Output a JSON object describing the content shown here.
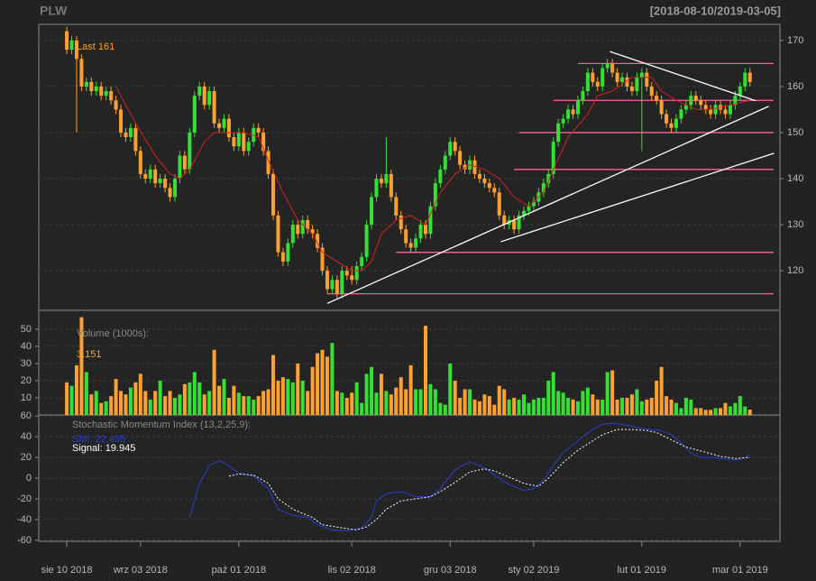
{
  "chart_data": [
    {
      "type": "candlestick",
      "title": "PLW",
      "subtitle": "[2018-08-10/2019-03-05]",
      "annotation": "Last 161",
      "up_color": "#34e034",
      "down_color": "#ffa030",
      "annotation_color": "#ffa030",
      "open": [
        172,
        168,
        170,
        166,
        160,
        161,
        159,
        160,
        158,
        159,
        157,
        155,
        150,
        149,
        151,
        146,
        141,
        140,
        142,
        139,
        140,
        138,
        136,
        140,
        145,
        142,
        150,
        158,
        160,
        156,
        159,
        152,
        151,
        153,
        149,
        147,
        150,
        146,
        148,
        151,
        150,
        146,
        141,
        132,
        124,
        122,
        126,
        130,
        128,
        131,
        129,
        128,
        125,
        120,
        116,
        118,
        115,
        120,
        119,
        118,
        121,
        123,
        130,
        136,
        140,
        139,
        141,
        136,
        132,
        129,
        126,
        125,
        127,
        130,
        128,
        134,
        139,
        142,
        145,
        148,
        146,
        143,
        142,
        144,
        141,
        140,
        139,
        138,
        137,
        132,
        130,
        131,
        129,
        132,
        133,
        134,
        135,
        137,
        139,
        141,
        148,
        152,
        153,
        155,
        154,
        157,
        159,
        163,
        161,
        160,
        164,
        165,
        163,
        161,
        162,
        160,
        159,
        162,
        163,
        160,
        158,
        157,
        154,
        152,
        151,
        153,
        155,
        156,
        158,
        157,
        156,
        155,
        154,
        156,
        155,
        154,
        156,
        158,
        160,
        163
      ],
      "high": [
        173,
        171,
        171,
        167,
        162,
        162,
        161,
        161,
        160,
        160,
        158,
        156,
        151,
        152,
        152,
        147,
        142,
        143,
        143,
        141,
        141,
        139,
        141,
        146,
        146,
        151,
        159,
        161,
        161,
        160,
        160,
        153,
        154,
        154,
        150,
        151,
        151,
        149,
        152,
        152,
        151,
        147,
        142,
        133,
        125,
        127,
        131,
        131,
        132,
        132,
        130,
        129,
        126,
        121,
        119,
        119,
        121,
        121,
        121,
        122,
        124,
        131,
        137,
        141,
        141,
        149,
        142,
        137,
        133,
        130,
        127,
        128,
        131,
        131,
        135,
        140,
        143,
        146,
        149,
        149,
        147,
        144,
        145,
        145,
        142,
        141,
        140,
        139,
        138,
        133,
        132,
        132,
        133,
        134,
        135,
        136,
        138,
        140,
        142,
        149,
        153,
        154,
        156,
        156,
        158,
        160,
        164,
        164,
        162,
        165,
        166,
        166,
        164,
        163,
        163,
        161,
        163,
        164,
        164,
        161,
        159,
        158,
        155,
        153,
        154,
        156,
        157,
        159,
        159,
        158,
        157,
        156,
        157,
        157,
        156,
        157,
        159,
        161,
        164,
        164
      ],
      "low": [
        167,
        167,
        150,
        159,
        159,
        158,
        158,
        157,
        157,
        156,
        154,
        149,
        148,
        148,
        145,
        140,
        139,
        139,
        138,
        138,
        137,
        135,
        135,
        139,
        141,
        141,
        149,
        157,
        155,
        155,
        151,
        150,
        150,
        148,
        146,
        146,
        145,
        145,
        147,
        149,
        145,
        140,
        131,
        123,
        121,
        121,
        125,
        127,
        127,
        128,
        127,
        124,
        119,
        115,
        115,
        114,
        114,
        118,
        117,
        117,
        120,
        122,
        129,
        135,
        138,
        138,
        135,
        131,
        128,
        125,
        124,
        124,
        126,
        127,
        127,
        133,
        138,
        141,
        144,
        145,
        142,
        141,
        141,
        140,
        139,
        138,
        137,
        136,
        131,
        129,
        129,
        128,
        128,
        131,
        132,
        133,
        134,
        136,
        138,
        140,
        147,
        151,
        152,
        153,
        153,
        156,
        158,
        160,
        159,
        159,
        163,
        162,
        160,
        160,
        159,
        158,
        158,
        146,
        159,
        157,
        156,
        153,
        151,
        150,
        150,
        152,
        154,
        155,
        156,
        155,
        154,
        153,
        153,
        154,
        153,
        153,
        155,
        157,
        159,
        160
      ],
      "close": [
        168,
        170,
        166,
        160,
        161,
        159,
        160,
        158,
        159,
        157,
        155,
        150,
        149,
        151,
        146,
        141,
        140,
        142,
        139,
        140,
        138,
        136,
        140,
        145,
        142,
        150,
        158,
        160,
        156,
        159,
        152,
        151,
        153,
        149,
        147,
        150,
        146,
        148,
        151,
        150,
        146,
        141,
        132,
        124,
        122,
        126,
        130,
        128,
        131,
        129,
        128,
        125,
        120,
        116,
        118,
        115,
        120,
        119,
        118,
        121,
        123,
        130,
        136,
        140,
        139,
        141,
        136,
        132,
        129,
        126,
        125,
        127,
        130,
        128,
        134,
        139,
        142,
        145,
        148,
        146,
        143,
        142,
        144,
        141,
        140,
        139,
        138,
        137,
        132,
        130,
        131,
        129,
        132,
        133,
        134,
        135,
        137,
        139,
        141,
        148,
        152,
        153,
        155,
        154,
        157,
        159,
        163,
        161,
        160,
        164,
        165,
        163,
        161,
        162,
        160,
        159,
        162,
        163,
        160,
        158,
        157,
        154,
        152,
        151,
        153,
        155,
        156,
        158,
        157,
        156,
        155,
        154,
        156,
        155,
        154,
        156,
        158,
        160,
        163,
        161
      ],
      "ma": {
        "color": "#d42020",
        "x": [
          10,
          14,
          18,
          21,
          23,
          25,
          28,
          30,
          33,
          36,
          39,
          41,
          44,
          47,
          50,
          52,
          55,
          58,
          60,
          62,
          64,
          67,
          70,
          73,
          76,
          79,
          82,
          85,
          88,
          91,
          94,
          97,
          99,
          102,
          106,
          108,
          111,
          115,
          119,
          121,
          124,
          128,
          131,
          135,
          139
        ],
        "values": [
          160,
          152,
          145,
          141,
          140,
          142,
          148,
          150,
          150,
          150,
          149,
          144,
          137,
          131,
          128,
          124,
          122,
          120,
          120,
          122,
          128,
          131,
          132,
          130,
          137,
          141,
          143,
          142,
          140,
          136,
          134,
          137,
          142,
          149,
          154,
          158,
          159,
          162,
          162,
          159,
          157,
          155,
          155,
          156,
          157
        ]
      },
      "levels": [
        {
          "value": 165,
          "from": 104
        },
        {
          "value": 157,
          "from": 99
        },
        {
          "value": 150,
          "from": 92
        },
        {
          "value": 142,
          "from": 91
        },
        {
          "value": 124,
          "from": 67
        },
        {
          "value": 115,
          "from": 53
        }
      ],
      "level_color": "#ff5f9e",
      "trendlines": [
        {
          "x": [
            53,
            142.8
          ],
          "y": [
            112.9,
            155.7
          ]
        },
        {
          "x": [
            88.3,
            143.9
          ],
          "y": [
            126.3,
            145.5
          ]
        },
        {
          "x": [
            110.5,
            140.2
          ],
          "y": [
            167.6,
            156.9
          ]
        }
      ],
      "trend_color": "#ffffff",
      "xlim": [
        -5.7,
        145.1
      ],
      "ylim": [
        111.4,
        173.5
      ],
      "yticks": [
        120,
        130,
        140,
        150,
        160,
        170
      ],
      "grid": true
    },
    {
      "type": "bar",
      "title": "Volume (1000s):",
      "annotation": "3.151",
      "annotation_color": "#ffa030",
      "values": [
        19,
        17,
        29,
        57,
        25,
        12,
        14,
        7,
        8,
        11,
        21,
        14,
        12,
        16,
        19,
        24,
        14,
        9,
        14,
        20,
        11,
        14,
        10,
        12,
        18,
        19,
        25,
        19,
        12,
        14,
        38,
        17,
        21,
        10,
        17,
        13,
        11,
        11,
        9,
        11,
        14,
        15,
        35,
        20,
        22,
        21,
        19,
        30,
        20,
        14,
        28,
        36,
        38,
        34,
        42,
        14,
        13,
        10,
        13,
        19,
        7,
        24,
        28,
        13,
        24,
        14,
        12,
        16,
        22,
        15,
        29,
        15,
        15,
        52,
        18,
        15,
        7,
        6,
        30,
        20,
        10,
        15,
        15,
        9,
        8,
        12,
        11,
        6,
        17,
        15,
        9,
        10,
        9,
        12,
        7,
        9,
        10,
        10,
        20,
        25,
        14,
        13,
        10,
        9,
        8,
        14,
        16,
        12,
        9,
        9,
        25,
        26,
        9,
        10,
        10,
        12,
        15,
        8,
        9,
        10,
        20,
        28,
        11,
        9,
        7,
        4,
        10,
        9,
        4,
        4,
        3,
        3,
        4,
        4,
        7,
        5,
        7,
        11,
        5,
        3.151
      ],
      "xlim": [
        -5.7,
        145.1
      ],
      "ylim": [
        0,
        61
      ],
      "yticks": [
        10,
        20,
        30,
        40,
        50
      ],
      "grid": true
    },
    {
      "type": "line",
      "title": "Stochastic Momentum Index (13,2,25,9):",
      "series": [
        {
          "label": "SMI: 22.495",
          "color": "#2a3fd0",
          "dashed": false,
          "x": [
            25,
            27,
            29,
            31,
            32,
            35,
            38,
            41,
            43,
            46,
            49,
            51,
            54,
            57,
            60,
            62,
            63,
            65,
            68,
            71,
            74,
            76,
            79,
            82,
            85,
            87,
            90,
            93,
            95,
            97,
            99,
            101,
            103,
            105,
            107,
            109,
            111,
            113,
            115,
            117,
            119,
            121,
            123,
            125,
            127,
            129,
            131,
            133,
            135,
            137,
            139
          ],
          "values": [
            -38,
            -5,
            12,
            17,
            15,
            5,
            2,
            -10,
            -30,
            -36,
            -38,
            -45,
            -50,
            -51,
            -48,
            -38,
            -22,
            -15,
            -13,
            -18,
            -18,
            -10,
            8,
            16,
            10,
            3,
            -6,
            -12,
            -10,
            -2,
            12,
            25,
            32,
            40,
            47,
            52,
            53,
            52,
            50,
            48,
            47,
            46,
            42,
            34,
            24,
            20,
            20,
            19,
            18,
            18,
            22.495
          ]
        },
        {
          "label": "Signal: 19.945",
          "color": "#ffffff",
          "dashed": true,
          "x": [
            33,
            35,
            38,
            41,
            43,
            46,
            50,
            52,
            56,
            59,
            61,
            63,
            65,
            68,
            71,
            74,
            76,
            79,
            82,
            85,
            87,
            90,
            93,
            96,
            98,
            101,
            104,
            107,
            109,
            112,
            115,
            118,
            120,
            123,
            126,
            130,
            133,
            136,
            139
          ],
          "values": [
            2,
            4,
            3,
            -5,
            -20,
            -30,
            -38,
            -45,
            -48,
            -50,
            -47,
            -40,
            -30,
            -22,
            -20,
            -18,
            -13,
            -4,
            6,
            9,
            7,
            1,
            -5,
            -8,
            0,
            15,
            27,
            36,
            42,
            47,
            47,
            46,
            44,
            37,
            30,
            25,
            21,
            19,
            19.945
          ]
        }
      ],
      "xlim": [
        -5.7,
        145.1
      ],
      "ylim": [
        -61,
        61
      ],
      "yticks": [
        -60,
        -40,
        -20,
        0,
        20,
        40,
        60
      ],
      "grid": true,
      "xticks": [
        {
          "value": 0,
          "label": "sie 10 2018"
        },
        {
          "value": 15,
          "label": "wrz 03 2018"
        },
        {
          "value": 35,
          "label": "paź 01 2018"
        },
        {
          "value": 58,
          "label": "lis 02 2018"
        },
        {
          "value": 78,
          "label": "gru 03 2018"
        },
        {
          "value": 95,
          "label": "sty 02 2019"
        },
        {
          "value": 117,
          "label": "lut 01 2019"
        },
        {
          "value": 137,
          "label": "mar 01 2019"
        }
      ]
    }
  ]
}
